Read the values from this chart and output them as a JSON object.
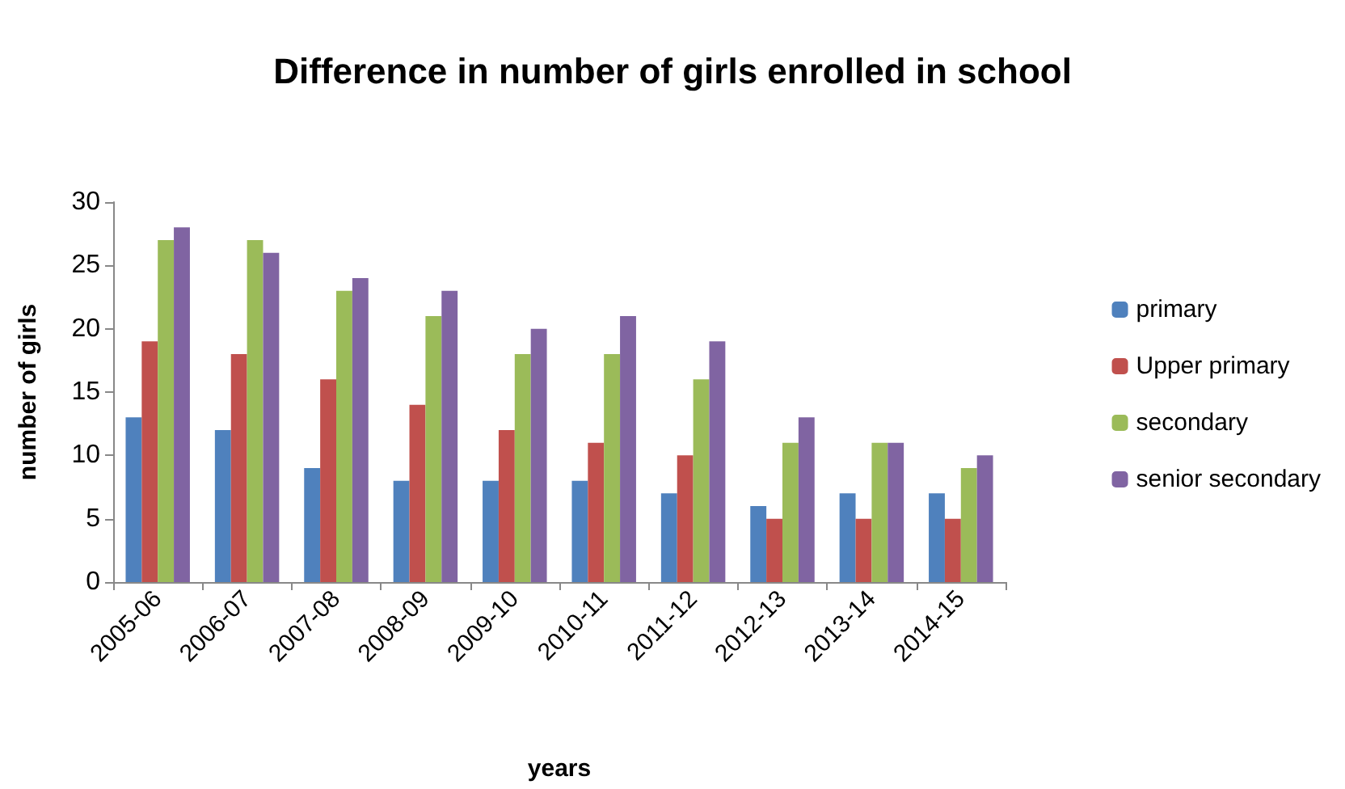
{
  "chart_data": {
    "type": "bar",
    "title": "Difference in number of girls enrolled in school",
    "xlabel": "years",
    "ylabel": "number of girls",
    "categories": [
      "2005-06",
      "2006-07",
      "2007-08",
      "2008-09",
      "2009-10",
      "2010-11",
      "2011-12",
      "2012-13",
      "2013-14",
      "2014-15"
    ],
    "series": [
      {
        "name": "primary",
        "color": "#4f81bd",
        "values": [
          13,
          12,
          9,
          8,
          8,
          8,
          7,
          6,
          7,
          7
        ]
      },
      {
        "name": "Upper primary",
        "color": "#c0504d",
        "values": [
          19,
          18,
          16,
          14,
          12,
          11,
          10,
          5,
          5,
          5
        ]
      },
      {
        "name": "secondary",
        "color": "#9bbb59",
        "values": [
          27,
          27,
          23,
          21,
          18,
          18,
          16,
          11,
          11,
          9
        ]
      },
      {
        "name": "senior secondary",
        "color": "#8064a2",
        "values": [
          28,
          26,
          24,
          23,
          20,
          21,
          19,
          13,
          11,
          10
        ]
      }
    ],
    "ylim": [
      0,
      30
    ],
    "yticks": [
      0,
      5,
      10,
      15,
      20,
      25,
      30
    ],
    "grid": false,
    "legend": "right"
  }
}
